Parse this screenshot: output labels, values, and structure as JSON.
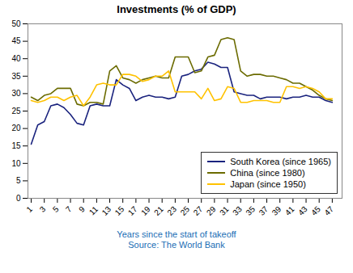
{
  "chart_data": {
    "type": "line",
    "title": "Investments (% of GDP)",
    "xlabel": "Years since the start of takeoff",
    "source": "Source: The World Bank",
    "x": [
      1,
      2,
      3,
      4,
      5,
      6,
      7,
      8,
      9,
      10,
      11,
      12,
      13,
      14,
      15,
      16,
      17,
      18,
      19,
      20,
      21,
      22,
      23,
      24,
      25,
      26,
      27,
      28,
      29,
      30,
      31,
      32,
      33,
      34,
      35,
      36,
      37,
      38,
      39,
      40,
      41,
      42,
      43,
      44,
      45,
      46,
      47
    ],
    "series": [
      {
        "name": "South Korea (since 1965)",
        "color": "#1a237e",
        "values": [
          15.5,
          21.0,
          22.0,
          26.5,
          27.0,
          26.0,
          24.0,
          21.5,
          21.0,
          26.5,
          27.0,
          26.5,
          26.5,
          34.0,
          32.5,
          31.5,
          28.0,
          29.0,
          29.5,
          29.0,
          29.0,
          28.5,
          29.0,
          35.0,
          35.5,
          36.5,
          37.0,
          39.0,
          38.5,
          37.5,
          37.5,
          30.5,
          30.0,
          29.5,
          29.5,
          28.5,
          29.0,
          29.0,
          29.0,
          28.5,
          29.0,
          29.0,
          29.5,
          29.0,
          29.0,
          28.0,
          27.5
        ]
      },
      {
        "name": "China (since 1980)",
        "color": "#6b6b00",
        "values": [
          29.0,
          28.0,
          29.5,
          30.0,
          31.5,
          31.5,
          31.5,
          27.0,
          26.5,
          27.5,
          27.5,
          27.0,
          36.5,
          38.0,
          34.5,
          34.0,
          33.0,
          34.0,
          34.5,
          35.0,
          34.5,
          34.5,
          40.5,
          40.5,
          40.5,
          36.0,
          36.5,
          40.5,
          41.0,
          45.5,
          46.0,
          45.5,
          36.5,
          35.0,
          35.5,
          35.5,
          35.0,
          35.0,
          34.5,
          34.0,
          33.0,
          33.0,
          32.0,
          31.0,
          29.5,
          28.5,
          28.0
        ]
      },
      {
        "name": "Japan (since 1950)",
        "color": "#ffc200",
        "values": [
          28.0,
          27.5,
          28.0,
          29.0,
          29.0,
          28.0,
          29.0,
          29.5,
          26.5,
          29.0,
          32.5,
          33.0,
          32.5,
          32.5,
          35.5,
          35.5,
          35.0,
          33.5,
          34.0,
          35.0,
          35.0,
          36.5,
          30.5,
          30.5,
          30.5,
          30.5,
          28.5,
          31.5,
          28.0,
          28.5,
          32.0,
          31.5,
          27.5,
          27.5,
          28.0,
          28.0,
          28.0,
          27.5,
          27.5,
          32.0,
          32.0,
          31.5,
          32.0,
          31.5,
          30.5,
          28.5,
          28.5
        ]
      }
    ],
    "xlim": [
      0.5,
      48.5
    ],
    "xticks": [
      1,
      3,
      5,
      7,
      9,
      11,
      13,
      15,
      17,
      19,
      21,
      23,
      25,
      27,
      29,
      31,
      33,
      35,
      37,
      39,
      41,
      43,
      45,
      47
    ],
    "ylim": [
      0,
      50
    ],
    "yticks": [
      0,
      5,
      10,
      15,
      20,
      25,
      30,
      35,
      40,
      45,
      50
    ],
    "grid": false,
    "legend": "lower right"
  }
}
